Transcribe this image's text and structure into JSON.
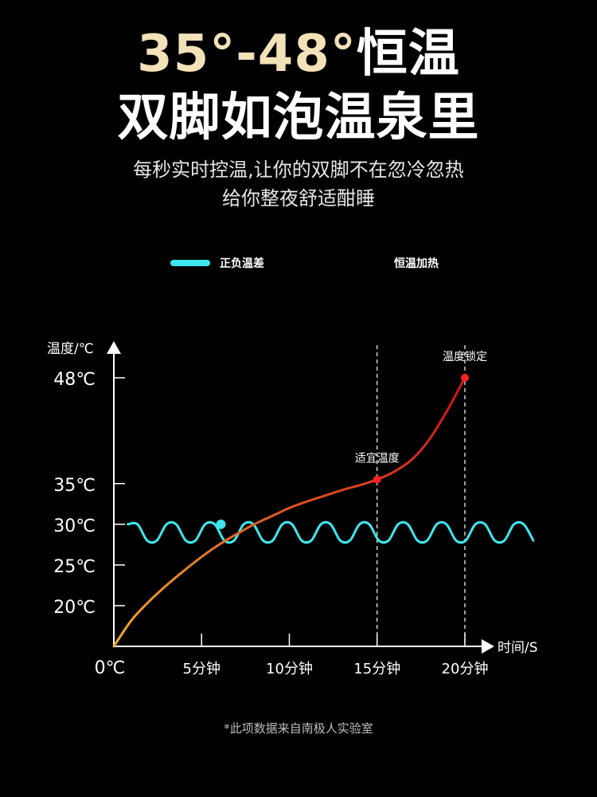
{
  "header": {
    "title_line1_accent": "35°-48°",
    "title_line1_rest": "恒温",
    "title_line2": "双脚如泡温泉里",
    "subtitle_line1": "每秒实时控温,让你的双脚不在忽冷忽热",
    "subtitle_line2": "给你整夜舒适酣睡"
  },
  "chart_data": {
    "type": "line",
    "ylabel": "温度/℃",
    "xlabel": "时间/S",
    "y_ticks": [
      {
        "label": "48℃",
        "value": 48
      },
      {
        "label": "35℃",
        "value": 35
      },
      {
        "label": "30℃",
        "value": 30
      },
      {
        "label": "25℃",
        "value": 25
      },
      {
        "label": "20℃",
        "value": 20
      }
    ],
    "x_ticks": [
      {
        "label": "5分钟",
        "value": 5
      },
      {
        "label": "10分钟",
        "value": 10
      },
      {
        "label": "15分钟",
        "value": 15
      },
      {
        "label": "20分钟",
        "value": 20
      }
    ],
    "origin_label": "0℃",
    "legend_position": "top",
    "series": [
      {
        "name": "正负温差",
        "color": "#3ee6ee",
        "x": [
          0.8,
          1.35,
          1.9,
          2.45,
          3.0,
          3.55,
          4.1,
          4.65,
          5.2,
          5.75,
          6.3,
          6.85,
          7.4,
          7.95,
          8.5,
          9.05,
          9.6,
          10.15,
          10.7,
          11.25,
          11.8,
          12.35,
          12.9,
          13.45,
          14.0,
          14.55,
          15.1,
          15.65,
          16.2,
          16.75,
          17.3,
          17.85,
          18.4,
          18.95,
          19.5,
          20.05,
          20.6,
          21.15,
          21.7,
          22.25,
          22.8,
          23.35,
          23.9
        ],
        "y": [
          30,
          30,
          28,
          28,
          30,
          30,
          28,
          28,
          30,
          30,
          28,
          28,
          30,
          30,
          28,
          28,
          30,
          30,
          28,
          28,
          30,
          30,
          28,
          28,
          30,
          30,
          28,
          28,
          30,
          30,
          28,
          28,
          30,
          30,
          28,
          28,
          30,
          30,
          28,
          28,
          30,
          30,
          28
        ]
      },
      {
        "name": "恒温加热",
        "color": "#f0a828",
        "color_end": "#d01818",
        "x": [
          0,
          1,
          2,
          3,
          4,
          5,
          6,
          7,
          8,
          9,
          10,
          11,
          12,
          13,
          14,
          15,
          16,
          17,
          18,
          19,
          20
        ],
        "y": [
          15,
          18.2,
          20.5,
          22.5,
          24.3,
          26.0,
          27.5,
          28.8,
          30.0,
          31.0,
          32.0,
          32.8,
          33.5,
          34.2,
          34.8,
          35.5,
          36.5,
          38.0,
          40.5,
          44.0,
          48.0
        ]
      }
    ],
    "highlight_point": {
      "x": 6.1,
      "y": 30,
      "color": "#3ee6ee"
    },
    "annotations": [
      {
        "text": "适宜温度",
        "x": 15,
        "y": 35.5
      },
      {
        "text": "温度锁定",
        "x": 20,
        "y": 48
      }
    ],
    "vertical_guides": [
      15,
      20
    ]
  },
  "footnote": "*此项数据来自南极人实验室"
}
